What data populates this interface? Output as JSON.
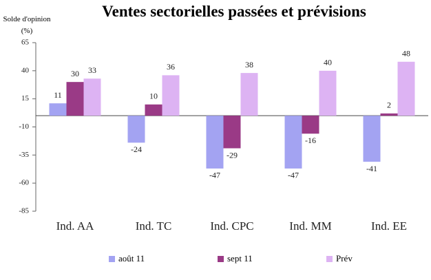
{
  "chart_data": {
    "type": "bar",
    "title": "Ventes sectorielles passées et prévisions",
    "y_label": "Solde d'opinion (%)",
    "categories": [
      "Ind. AA",
      "Ind. TC",
      "Ind. CPC",
      "Ind. MM",
      "Ind. EE"
    ],
    "series": [
      {
        "name": "août 11",
        "color": "#a3a3f2",
        "values": [
          11,
          -24,
          -47,
          -47,
          -41
        ]
      },
      {
        "name": "sept 11",
        "color": "#9a3a86",
        "values": [
          30,
          10,
          -29,
          -16,
          2
        ]
      },
      {
        "name": "Prév",
        "color": "#ddb3f3",
        "values": [
          33,
          36,
          38,
          40,
          48
        ]
      }
    ],
    "ylim": [
      -85,
      65
    ],
    "yticks": [
      -85,
      -60,
      -35,
      -10,
      15,
      40,
      65
    ],
    "grid": false
  }
}
